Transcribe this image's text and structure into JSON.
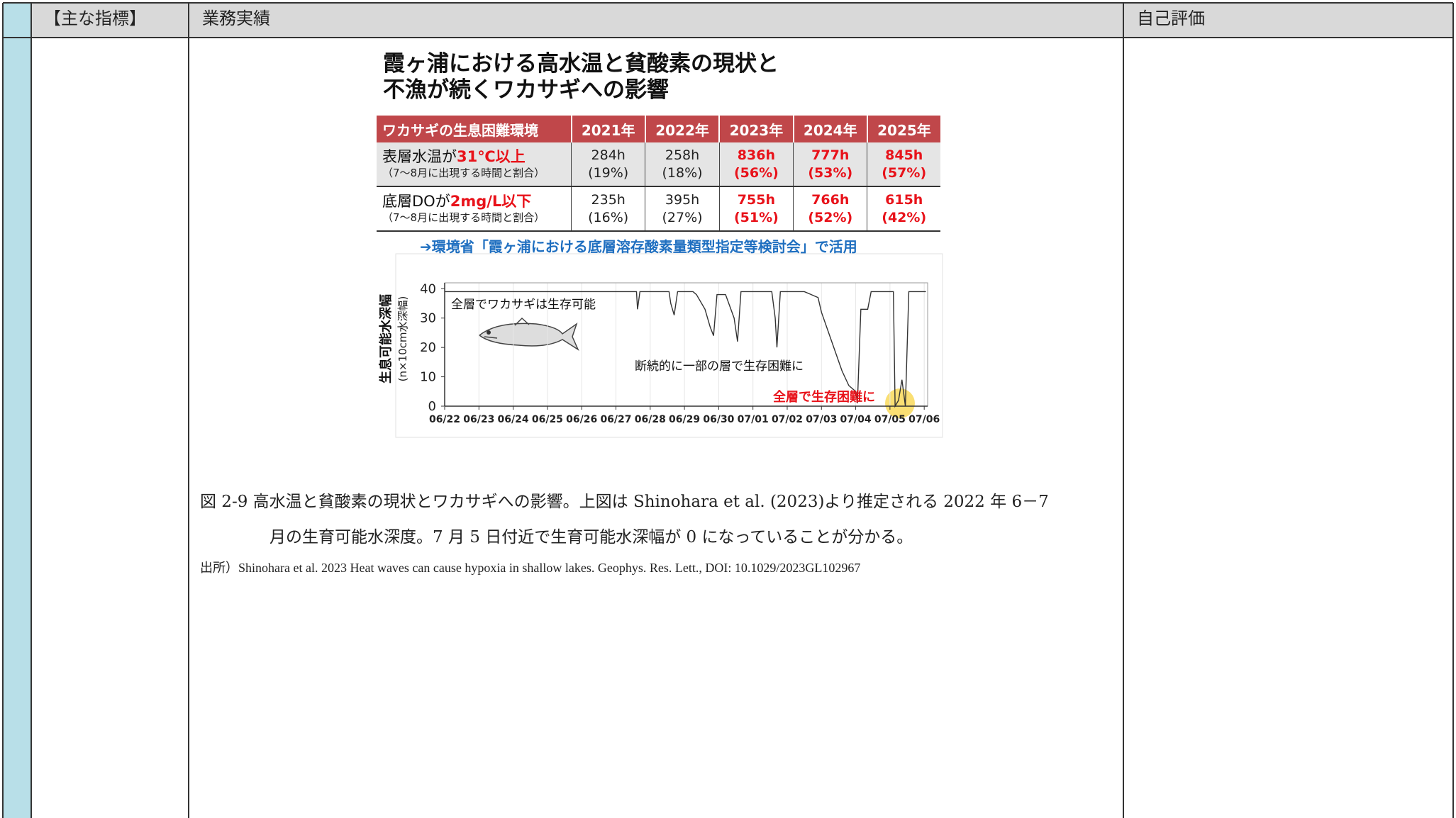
{
  "header": {
    "col1": "【主な指標】",
    "col2": "業務実績",
    "col3": "自己評価"
  },
  "figure": {
    "title_lines": [
      "霞ヶ浦における高水温と貧酸素の現状と",
      "不漁が続くワカサギへの影響"
    ],
    "table": {
      "header": [
        "ワカサギの生息困難環境",
        "2021年",
        "2022年",
        "2023年",
        "2024年",
        "2025年"
      ],
      "rows": [
        {
          "label": [
            "表層水温が",
            "31℃以上"
          ],
          "note": "（7〜8月に出現する時間と割合）",
          "cells": [
            [
              "284h",
              "(19%)"
            ],
            [
              "258h",
              "(18%)"
            ],
            [
              "836h",
              "(56%)"
            ],
            [
              "777h",
              "(53%)"
            ],
            [
              "845h",
              "(57%)"
            ]
          ]
        },
        {
          "label": [
            "底層DOが",
            "2mg/L以下"
          ],
          "note": "（7〜8月に出現する時間と割合）",
          "cells": [
            [
              "235h",
              "(16%)"
            ],
            [
              "395h",
              "(27%)"
            ],
            [
              "755h",
              "(51%)"
            ],
            [
              "766h",
              "(52%)"
            ],
            [
              "615h",
              "(42%)"
            ]
          ]
        }
      ]
    },
    "note": "➔環境省「霞ヶ浦における底層溶存酸素量類型指定等検討会」で活用"
  },
  "chart_data": {
    "type": "line",
    "y_label": "生息可能水深幅",
    "y_sublabel": "(n×10cm水深幅)",
    "annotations": [
      "全層でワカサギは生存可能",
      "断続的に一部の層で生存困難に",
      "全層で生存困難に"
    ],
    "x": [
      0,
      5.6,
      5.63,
      5.7,
      6.55,
      6.6,
      6.7,
      6.8,
      7.25,
      7.35,
      7.6,
      7.75,
      7.85,
      7.95,
      8.2,
      8.45,
      8.55,
      8.65,
      9.55,
      9.65,
      9.7,
      9.8,
      10.5,
      10.9,
      11.0,
      11.3,
      11.6,
      11.8,
      12.0,
      12.05,
      12.15,
      12.35,
      12.45,
      13.1,
      13.15,
      13.25,
      13.35,
      13.45,
      13.55,
      14.05
    ],
    "values": [
      39,
      39,
      33,
      39,
      39,
      35,
      31,
      39,
      39,
      38,
      33,
      27,
      24,
      38,
      38,
      30,
      22,
      39,
      39,
      30,
      20,
      39,
      39,
      37,
      32,
      22,
      12,
      7,
      5,
      1,
      33,
      33,
      39,
      39,
      0,
      2,
      9,
      0,
      39,
      39
    ],
    "color": "#333333",
    "xlim": [
      0,
      14.1
    ],
    "ylim": [
      0,
      42
    ],
    "xticks": [
      {
        "value": 0,
        "label": "06/22"
      },
      {
        "value": 1,
        "label": "06/23"
      },
      {
        "value": 2,
        "label": "06/24"
      },
      {
        "value": 3,
        "label": "06/25"
      },
      {
        "value": 4,
        "label": "06/26"
      },
      {
        "value": 5,
        "label": "06/27"
      },
      {
        "value": 6,
        "label": "06/28"
      },
      {
        "value": 7,
        "label": "06/29"
      },
      {
        "value": 8,
        "label": "06/30"
      },
      {
        "value": 9,
        "label": "07/01"
      },
      {
        "value": 10,
        "label": "07/02"
      },
      {
        "value": 11,
        "label": "07/03"
      },
      {
        "value": 12,
        "label": "07/04"
      },
      {
        "value": 13,
        "label": "07/05"
      },
      {
        "value": 14,
        "label": "07/06"
      }
    ],
    "yticks": [
      0,
      10,
      20,
      30,
      40
    ],
    "grid": true
  },
  "caption": {
    "lines": [
      "図 2-9 高水温と貧酸素の現状とワカサギへの影響。上図は Shinohara et al. (2023)より推定される 2022 年 6－7",
      "月の生育可能水深度。7 月 5 日付近で生育可能水深幅が 0 になっていることが分かる。"
    ]
  },
  "source": "出所）Shinohara et al. 2023 Heat waves can cause hypoxia in shallow lakes. Geophys. Res. Lett., DOI: 10.1029/2023GL102967"
}
